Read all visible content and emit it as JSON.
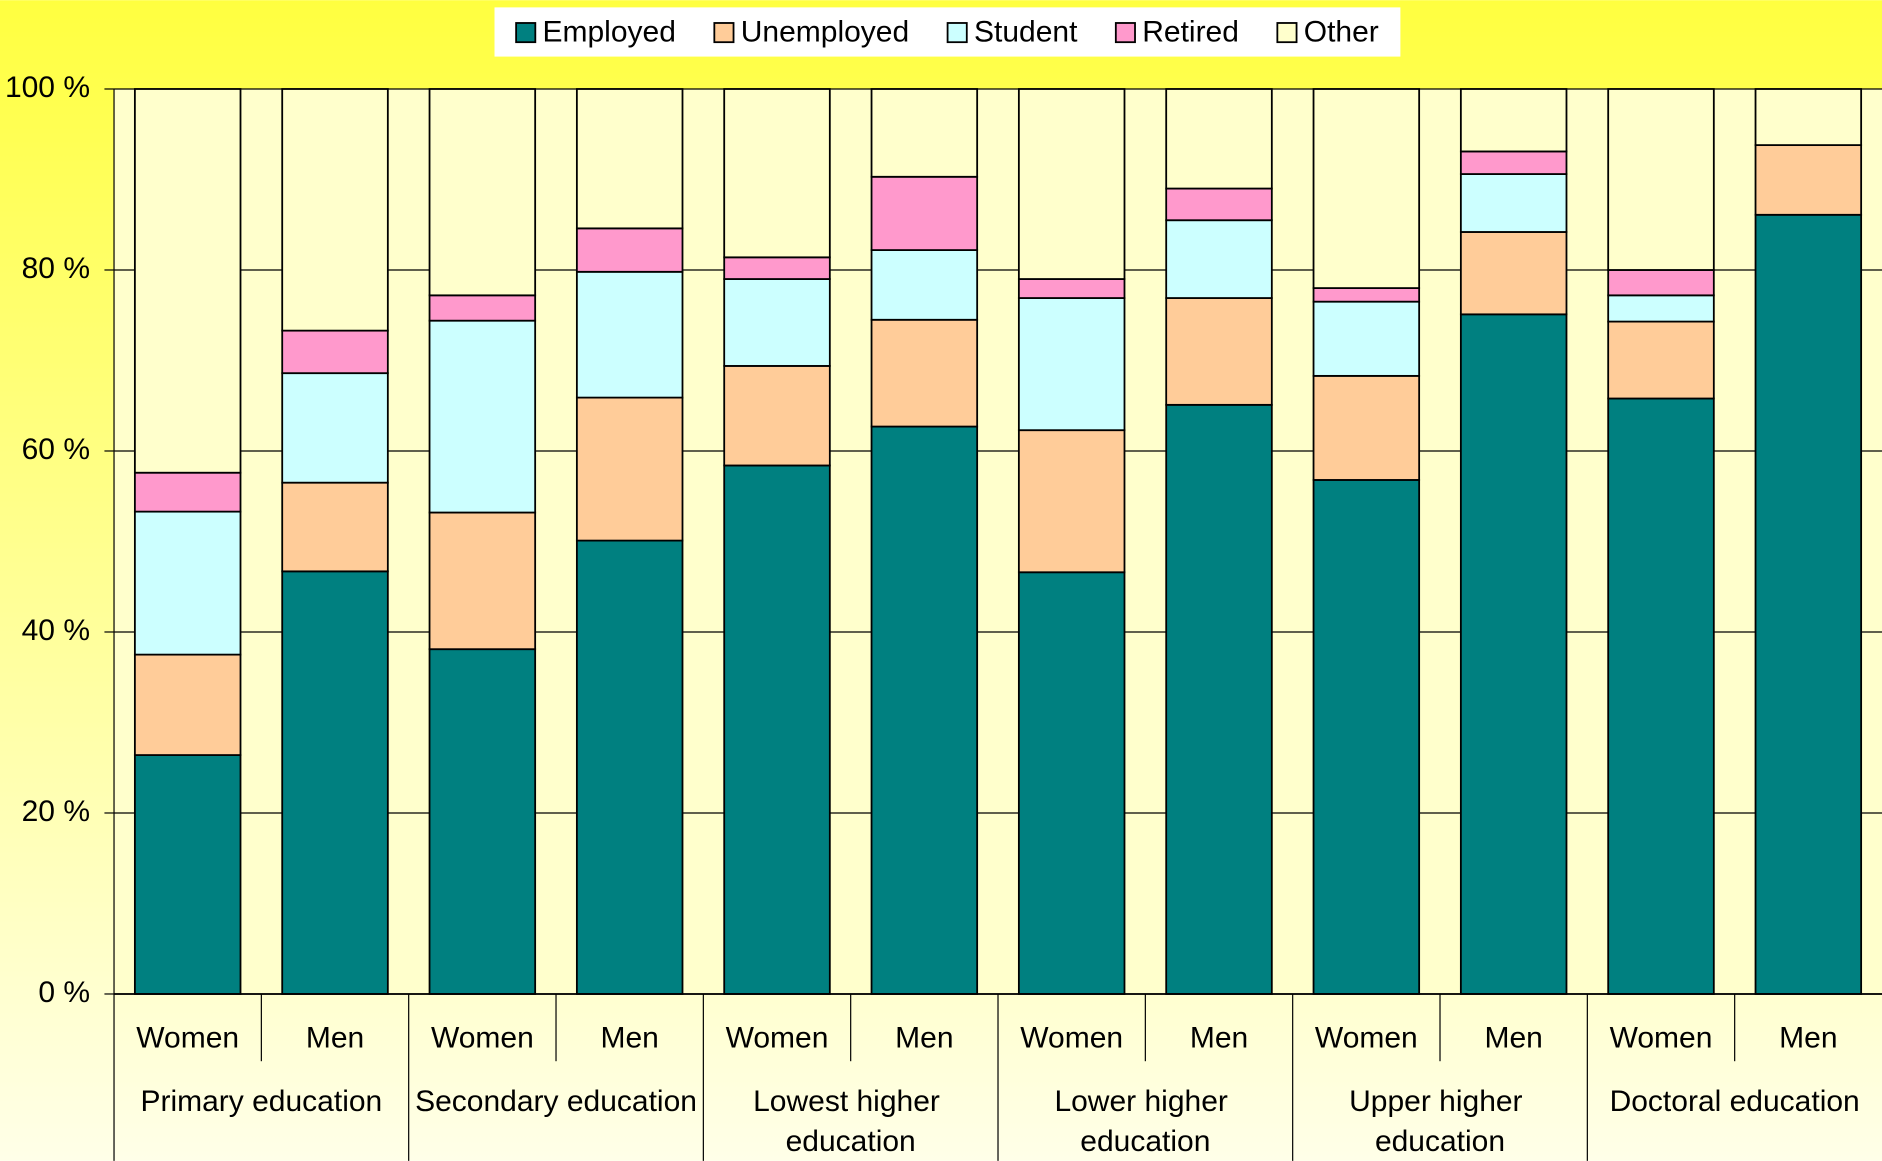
{
  "chart_data": {
    "type": "stacked_bar",
    "categories": [
      "Women",
      "Men",
      "Women",
      "Men",
      "Women",
      "Men",
      "Women",
      "Men",
      "Women",
      "Men",
      "Women",
      "Men"
    ],
    "groups": [
      "Primary education",
      "Secondary education",
      "Lowest higher education",
      "Lower higher education",
      "Upper higher education",
      "Doctoral education"
    ],
    "series": [
      {
        "name": "Employed",
        "color": "#008080",
        "values": [
          26.4,
          46.7,
          38.1,
          50.1,
          58.4,
          62.7,
          46.6,
          65.1,
          56.8,
          75.1,
          65.8,
          86.1
        ]
      },
      {
        "name": "Unemployed",
        "color": "#ffcc99",
        "values": [
          11.1,
          9.8,
          15.1,
          15.8,
          11.0,
          11.8,
          15.7,
          11.8,
          11.5,
          9.1,
          8.5,
          7.7
        ]
      },
      {
        "name": "Student",
        "color": "#ccffff",
        "values": [
          15.8,
          12.1,
          21.2,
          13.9,
          9.6,
          7.7,
          14.6,
          8.6,
          8.2,
          6.4,
          2.9,
          0
        ]
      },
      {
        "name": "Retired",
        "color": "#ff99cc",
        "values": [
          4.3,
          4.7,
          2.8,
          4.8,
          2.4,
          8.1,
          2.1,
          3.5,
          1.5,
          2.5,
          2.8,
          0
        ]
      },
      {
        "name": "Other",
        "color": "#ffffcc",
        "values": [
          42.4,
          26.7,
          22.8,
          15.4,
          18.6,
          9.7,
          21.0,
          11.0,
          22.0,
          6.9,
          20.0,
          6.2
        ]
      }
    ],
    "ylim": [
      0,
      100
    ],
    "yticks": [
      {
        "value": 0,
        "label": "0 %"
      },
      {
        "value": 20,
        "label": "20 %"
      },
      {
        "value": 40,
        "label": "40 %"
      },
      {
        "value": 60,
        "label": "60 %"
      },
      {
        "value": 80,
        "label": "80 %"
      },
      {
        "value": 100,
        "label": "100 %"
      }
    ],
    "grid": true,
    "legend": "top"
  }
}
